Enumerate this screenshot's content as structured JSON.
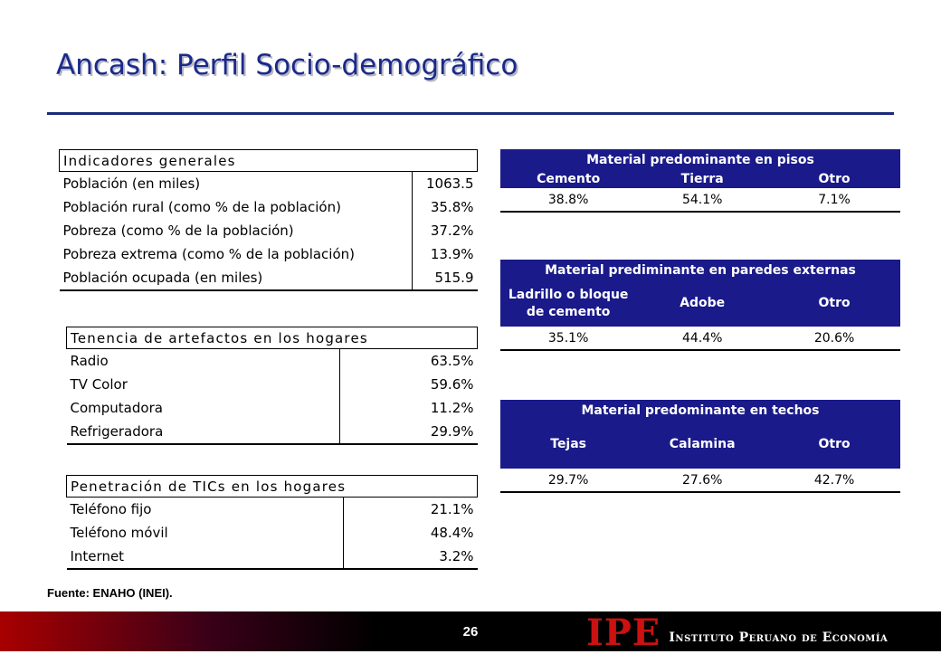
{
  "slide": {
    "title": "Ancash: Perfil Socio-demográfico",
    "source": "Fuente: ENAHO (INEI).",
    "page_number": "26"
  },
  "logo": {
    "mark": "IPE",
    "name": "Instituto Peruano de Economía"
  },
  "indicadores": {
    "header": "Indicadores generales",
    "rows": [
      {
        "label": "Población (en miles)",
        "value": "1063.5"
      },
      {
        "label": "Población rural (como % de la población)",
        "value": "35.8%"
      },
      {
        "label": "Pobreza (como % de la población)",
        "value": "37.2%"
      },
      {
        "label": "Pobreza extrema (como % de la población)",
        "value": "13.9%"
      },
      {
        "label": "Población ocupada (en miles)",
        "value": "515.9"
      }
    ]
  },
  "artefactos": {
    "header": "Tenencia de artefactos en los hogares",
    "rows": [
      {
        "label": "Radio",
        "value": "63.5%"
      },
      {
        "label": "TV Color",
        "value": "59.6%"
      },
      {
        "label": "Computadora",
        "value": "11.2%"
      },
      {
        "label": "Refrigeradora",
        "value": "29.9%"
      }
    ]
  },
  "tics": {
    "header": "Penetración de TICs en los hogares",
    "rows": [
      {
        "label": "Teléfono fijo",
        "value": "21.1%"
      },
      {
        "label": "Teléfono móvil",
        "value": "48.4%"
      },
      {
        "label": "Internet",
        "value": "3.2%"
      }
    ]
  },
  "pisos": {
    "header": "Material predominante en pisos",
    "columns": [
      "Cemento",
      "Tierra",
      "Otro"
    ],
    "values": [
      "38.8%",
      "54.1%",
      "7.1%"
    ]
  },
  "paredes": {
    "header": "Material prediminante en paredes externas",
    "columns": [
      "Ladrillo o bloque de cemento",
      "Adobe",
      "Otro"
    ],
    "values": [
      "35.1%",
      "44.4%",
      "20.6%"
    ]
  },
  "techos": {
    "header": "Material predominante en techos",
    "columns": [
      "Tejas",
      "Calamina",
      "Otro"
    ],
    "values": [
      "29.7%",
      "27.6%",
      "42.7%"
    ]
  },
  "colors": {
    "title_text": "#1a2a8a",
    "table_header_bg": "#1a1a8a",
    "footer_red": "#a80000",
    "logo_red": "#cc1111"
  }
}
